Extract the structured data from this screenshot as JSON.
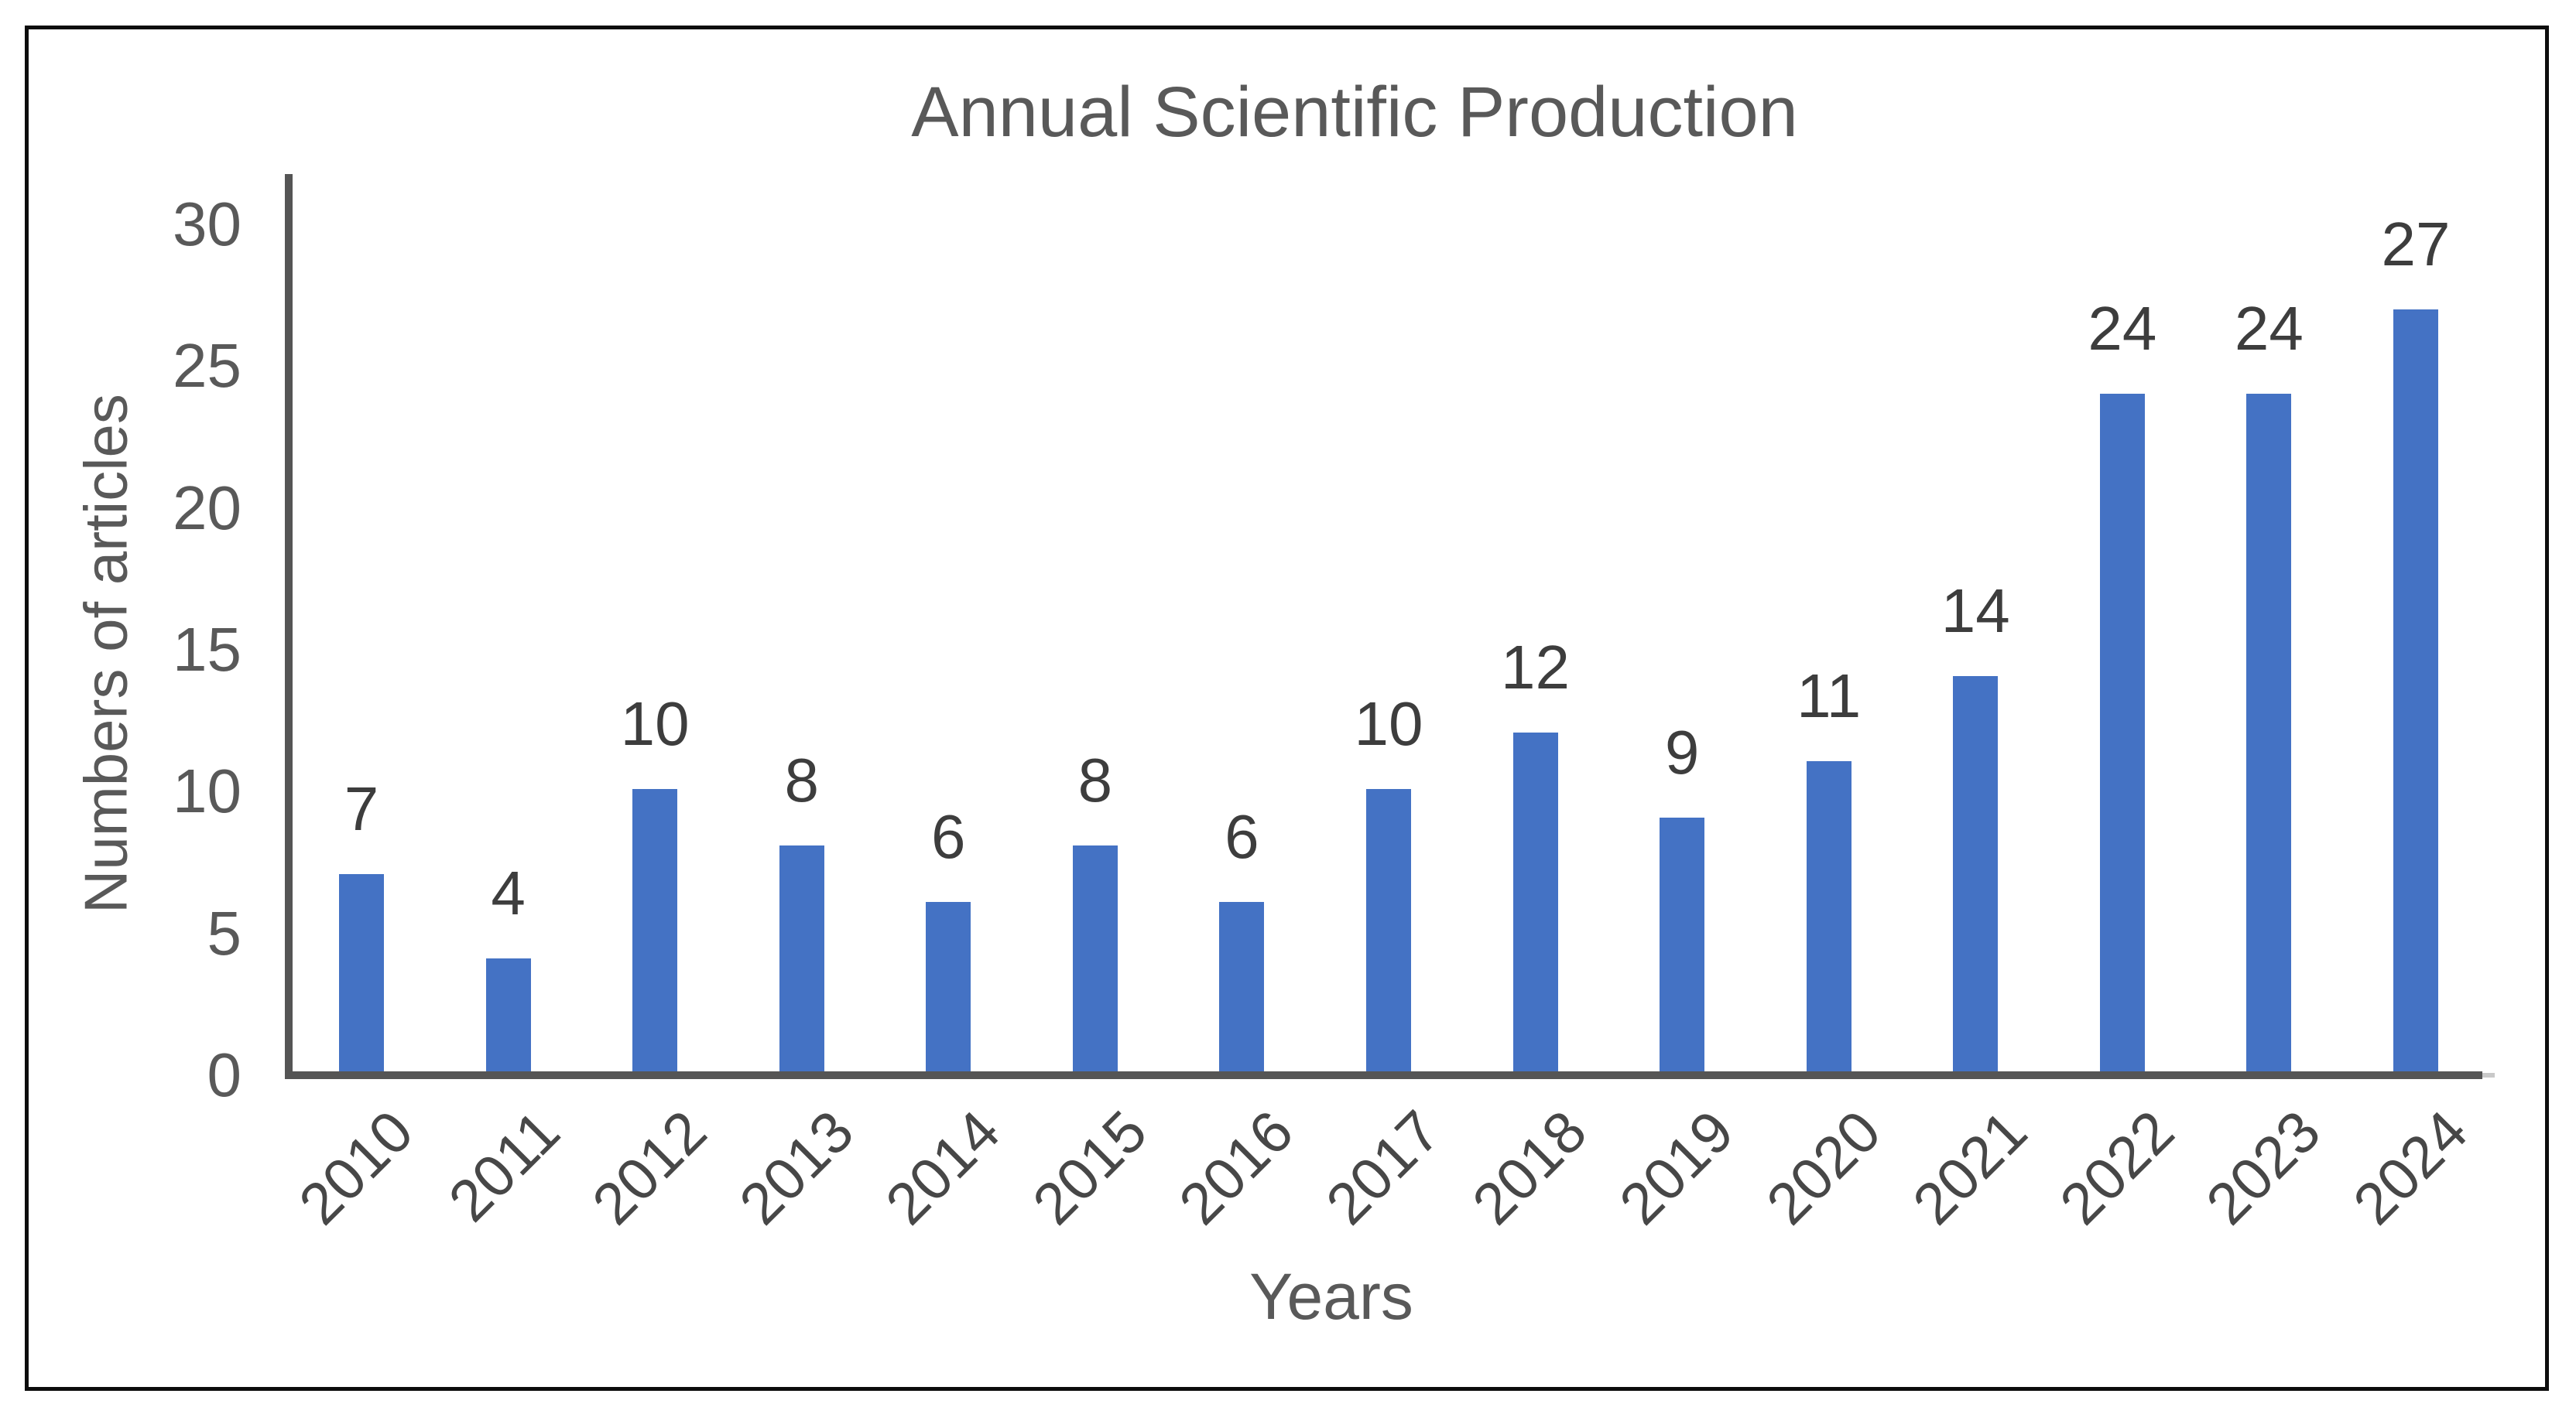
{
  "chart_data": {
    "type": "bar",
    "title": "Annual Scientific Production",
    "xlabel": "Years",
    "ylabel": "Numbers of articles",
    "categories": [
      "2010",
      "2011",
      "2012",
      "2013",
      "2014",
      "2015",
      "2016",
      "2017",
      "2018",
      "2019",
      "2020",
      "2021",
      "2022",
      "2023",
      "2024"
    ],
    "values": [
      7,
      4,
      10,
      8,
      6,
      8,
      6,
      10,
      12,
      9,
      11,
      14,
      24,
      24,
      27
    ],
    "yticks": [
      0,
      5,
      10,
      15,
      20,
      25,
      30
    ],
    "ylim": [
      0,
      30
    ],
    "grid": false,
    "legend": null,
    "data_labels_shown": true,
    "bar_color": "#4472C4",
    "axis_line_color": "#555555",
    "tick_label_color": "#595959",
    "data_label_color": "#3d3d3d",
    "category_label_color": "#474747",
    "title_color": "#595959",
    "frame_border_color": "#0d0d0d",
    "background_color": "#ffffff"
  }
}
